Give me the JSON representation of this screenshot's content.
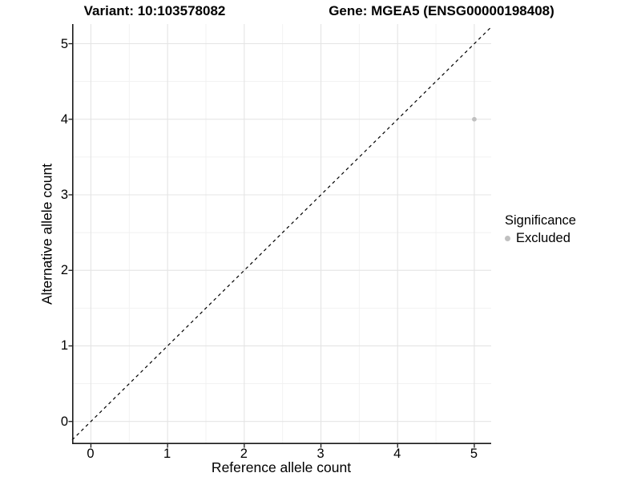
{
  "header": {
    "variant_title": "Variant: 10:103578082",
    "gene_title": "Gene: MGEA5 (ENSG00000198408)"
  },
  "chart_data": {
    "type": "scatter",
    "xlabel": "Reference allele count",
    "ylabel": "Alternative allele count",
    "x_ticks": [
      0,
      1,
      2,
      3,
      4,
      5
    ],
    "y_ticks": [
      0,
      1,
      2,
      3,
      4,
      5
    ],
    "x_minor_ticks": [
      0.5,
      1.5,
      2.5,
      3.5,
      4.5
    ],
    "y_minor_ticks": [
      0.5,
      1.5,
      2.5,
      3.5,
      4.5
    ],
    "xlim": [
      -0.245,
      5.22
    ],
    "ylim": [
      -0.3,
      5.26
    ],
    "grid": true,
    "reference_line": {
      "type": "identity",
      "equation": "y = x",
      "style": "dashed",
      "color": "#000000"
    },
    "series": [
      {
        "name": "Excluded",
        "color": "#c0c0c0",
        "points": [
          {
            "x": 5,
            "y": 4
          }
        ]
      }
    ],
    "legend": {
      "title": "Significance",
      "position": "right",
      "items": [
        {
          "label": "Excluded",
          "color": "#c0c0c0"
        }
      ]
    },
    "colors": {
      "grid_major": "#e4e4e4",
      "grid_minor": "#f1f1f1",
      "axis": "#1a1a1a",
      "text": "#000000"
    }
  }
}
